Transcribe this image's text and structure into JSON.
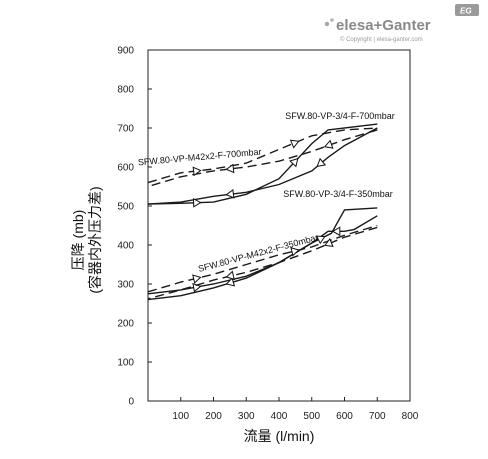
{
  "brand": {
    "logo_text": "elesa+Ganter",
    "badge": "EG",
    "copyright": "© Copyright | elesa-ganter.com"
  },
  "chart_data": {
    "type": "line",
    "title": "",
    "xlabel": "流量 (l/min)",
    "ylabel_line1": "压降 (mb)",
    "ylabel_line2": "(容器内外压力差)",
    "xlim": [
      0,
      800
    ],
    "ylim": [
      0,
      900
    ],
    "x_ticks": [
      100,
      200,
      300,
      400,
      500,
      600,
      700,
      800
    ],
    "y_ticks": [
      0,
      100,
      200,
      300,
      400,
      500,
      600,
      700,
      800,
      900
    ],
    "grid": false,
    "series": [
      {
        "name": "SFW.80-VP-3/4-F-700mbar",
        "style": "solid",
        "color": "#1a1a1a",
        "increasing": {
          "x": [
            0,
            100,
            200,
            300,
            400,
            500,
            550,
            700
          ],
          "y": [
            505,
            507,
            510,
            530,
            570,
            660,
            695,
            710
          ]
        },
        "decreasing": {
          "x": [
            700,
            600,
            550,
            500,
            400,
            300,
            200,
            100,
            0
          ],
          "y": [
            700,
            655,
            625,
            590,
            555,
            535,
            525,
            510,
            505
          ]
        }
      },
      {
        "name": "SFW.80-VP-M42x2-F-700mbar",
        "style": "dashed",
        "color": "#1a1a1a",
        "increasing": {
          "x": [
            0,
            100,
            200,
            300,
            400,
            500,
            600,
            700
          ],
          "y": [
            560,
            585,
            595,
            610,
            645,
            680,
            695,
            700
          ]
        },
        "decreasing": {
          "x": [
            700,
            600,
            500,
            400,
            300,
            200,
            100,
            0
          ],
          "y": [
            695,
            670,
            640,
            615,
            600,
            590,
            575,
            550
          ]
        }
      },
      {
        "name": "SFW.80-VP-3/4-F-350mbar",
        "style": "solid",
        "color": "#1a1a1a",
        "increasing": {
          "x": [
            0,
            100,
            200,
            300,
            400,
            500,
            560,
            600,
            700
          ],
          "y": [
            275,
            285,
            300,
            320,
            355,
            405,
            430,
            490,
            495
          ]
        },
        "decreasing": {
          "x": [
            700,
            630,
            600,
            550,
            500,
            400,
            300,
            200,
            100,
            0
          ],
          "y": [
            475,
            440,
            435,
            435,
            405,
            355,
            315,
            290,
            270,
            260
          ]
        }
      },
      {
        "name": "SFW.80-VP-M42x2-F-350mbar",
        "style": "dashed",
        "color": "#1a1a1a",
        "increasing": {
          "x": [
            0,
            100,
            200,
            300,
            400,
            500,
            600,
            700
          ],
          "y": [
            280,
            305,
            325,
            350,
            375,
            395,
            425,
            450
          ]
        },
        "decreasing": {
          "x": [
            700,
            600,
            500,
            400,
            300,
            200,
            100,
            0
          ],
          "y": [
            445,
            420,
            385,
            355,
            330,
            310,
            285,
            262
          ]
        }
      }
    ],
    "series_label_texts": [
      "SFW.80-VP-3/4-F-700mbar",
      "SFW.80-VP-M42x2-F-700mbar",
      "SFW.80-VP-3/4-F-350mbar",
      "SFW.80-VP-M42x2-F-350mbar"
    ]
  }
}
